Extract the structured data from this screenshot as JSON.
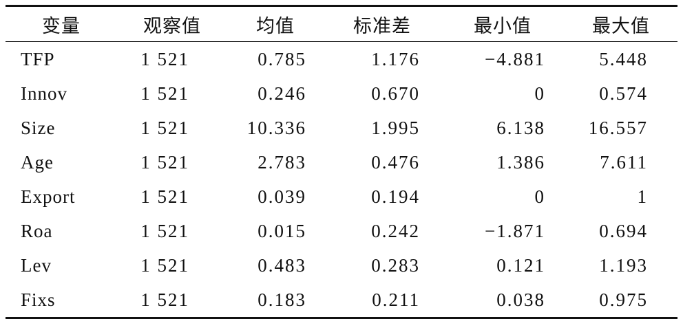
{
  "table": {
    "header": [
      "变量",
      "观察值",
      "均值",
      "标准差",
      "最小值",
      "最大值"
    ],
    "rows": [
      [
        "TFP",
        "1 521",
        "0.785",
        "1.176",
        "−4.881",
        "5.448"
      ],
      [
        "Innov",
        "1 521",
        "0.246",
        "0.670",
        "0",
        "0.574"
      ],
      [
        "Size",
        "1 521",
        "10.336",
        "1.995",
        "6.138",
        "16.557"
      ],
      [
        "Age",
        "1 521",
        "2.783",
        "0.476",
        "1.386",
        "7.611"
      ],
      [
        "Export",
        "1 521",
        "0.039",
        "0.194",
        "0",
        "1"
      ],
      [
        "Roa",
        "1 521",
        "0.015",
        "0.242",
        "−1.871",
        "0.694"
      ],
      [
        "Lev",
        "1 521",
        "0.483",
        "0.283",
        "0.121",
        "1.193"
      ],
      [
        "Fixs",
        "1 521",
        "0.183",
        "0.211",
        "0.038",
        "0.975"
      ]
    ]
  }
}
